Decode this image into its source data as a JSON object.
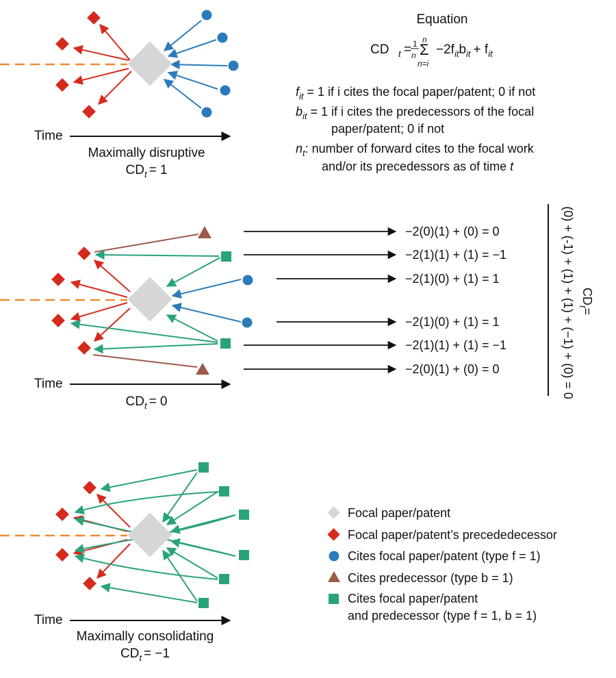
{
  "colors": {
    "focal": "#d6d6d6",
    "predecessor": "#d52b1e",
    "cites_focal": "#2b7bba",
    "cites_pred": "#9c5a48",
    "cites_both": "#2aa37a",
    "timeline": "#f08a2c",
    "axis": "#111111"
  },
  "icons": {
    "focal": "diamond-shape",
    "predecessor": "diamond-shape",
    "cites_focal": "circle-shape",
    "cites_pred": "triangle-shape",
    "cites_both": "square-shape"
  },
  "equation": {
    "title": "Equation",
    "lhs": "CD",
    "lhs_sub": "t",
    "eq": "=",
    "frac_num": "1",
    "frac_den": "n",
    "sum_sign": "Σ",
    "sum_top": "n",
    "sum_bottom": "n=i",
    "term_a": "−2f",
    "term_a_sub": "it",
    "term_b": "b",
    "term_b_sub": "it",
    "term_c": "+ f",
    "term_c_sub": "it"
  },
  "definitions": {
    "f": {
      "sym": "f",
      "sub": "it",
      "text": "= 1 if i cites the focal paper/patent; 0 if not"
    },
    "b": {
      "sym": "b",
      "sub": "it",
      "line1": "= 1 if i cites the predecessors of the focal",
      "line2": "paper/patent; 0 if not"
    },
    "n": {
      "sym": "n",
      "sub": "t",
      "line1": ": number of forward cites to the focal work",
      "line2a": "and/or its precedessors as of time ",
      "line2b": "t"
    }
  },
  "panels": {
    "top": {
      "time": "Time",
      "caption": "Maximally disruptive",
      "cd": "CD",
      "cd_sub": "t",
      "cd_val": "= 1"
    },
    "middle": {
      "time": "Time",
      "cd": "CD",
      "cd_sub": "t",
      "cd_val": "= 0"
    },
    "bottom": {
      "time": "Time",
      "caption": "Maximally consolidating",
      "cd": "CD",
      "cd_sub": "t",
      "cd_val": "= −1"
    }
  },
  "calculations": [
    "−2(0)(1) + (0) = 0",
    "−2(1)(1) + (1) = −1",
    "−2(1)(0) + (1) = 1",
    "−2(1)(0) + (1) = 1",
    "−2(1)(1) + (1) = −1",
    "−2(0)(1) + (0) = 0"
  ],
  "cd_total": {
    "lhs": "CD",
    "lhs_sub": "t",
    "eq": "=",
    "num": "(0) + (-1) + (1) + (1) + (−1) + (0) = 0"
  },
  "legend": [
    {
      "icon": "focal",
      "label": "Focal paper/patent"
    },
    {
      "icon": "predecessor",
      "label": "Focal paper/patent’s precededecessor"
    },
    {
      "icon": "cites_focal",
      "label": "Cites focal paper/patent (type f = 1)"
    },
    {
      "icon": "cites_pred",
      "label": "Cites predecessor (type b = 1)"
    },
    {
      "icon": "cites_both",
      "label": "Cites focal paper/patent",
      "label2": "and predecessor (type f = 1, b = 1)"
    }
  ]
}
